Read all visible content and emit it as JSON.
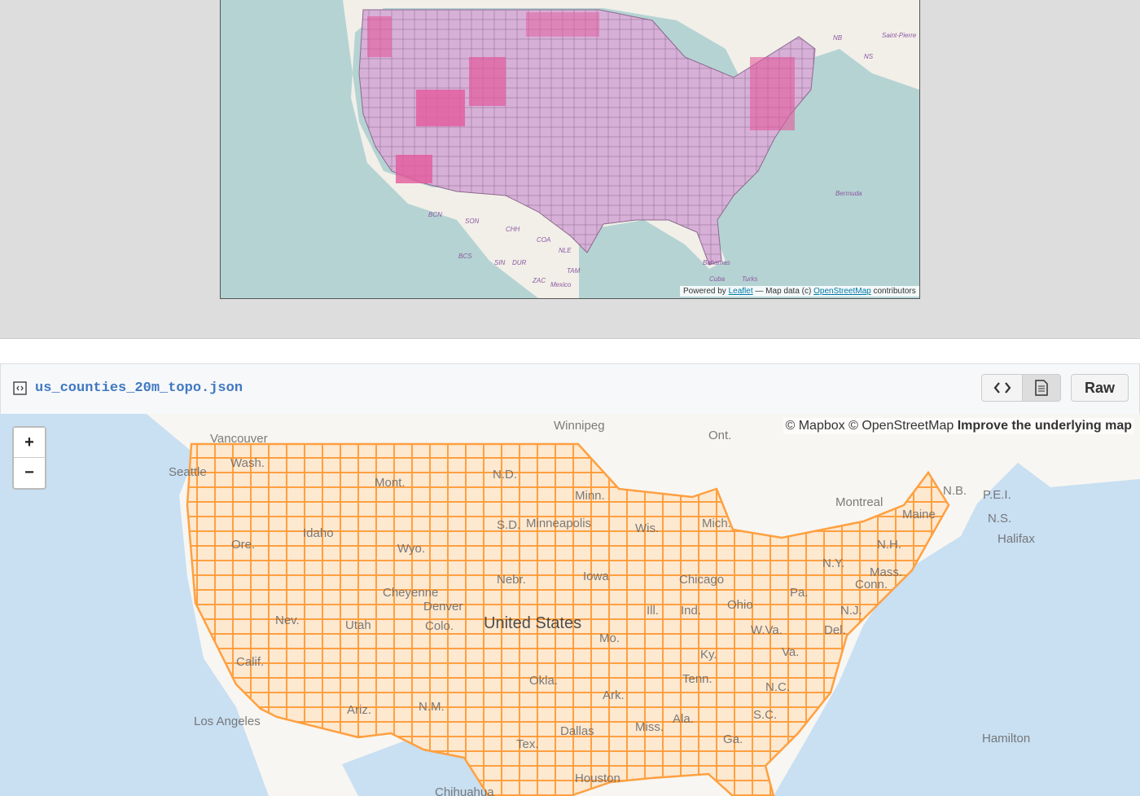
{
  "top_map": {
    "labels": [
      "NB",
      "Saint-Pierre",
      "NS",
      "Bermuda",
      "BCN",
      "SON",
      "CHH",
      "COA",
      "BCS",
      "SIN",
      "DUR",
      "TAM",
      "NLE",
      "ZAC",
      "Mexico",
      "Bahamas",
      "Cuba",
      "Turks"
    ],
    "attribution": {
      "prefix": "Powered by",
      "leaflet": "Leaflet",
      "middle": "— Map data (c)",
      "osm": "OpenStreetMap",
      "suffix": "contributors"
    }
  },
  "file_header": {
    "filename": "us_counties_20m_topo.json",
    "raw_button": "Raw"
  },
  "bottom_map": {
    "zoom_in": "+",
    "zoom_out": "−",
    "attribution": "© Mapbox © OpenStreetMap",
    "improve_link": "Improve the underlying map",
    "labels": [
      "Winnipeg",
      "Vancouver",
      "Seattle",
      "Wash.",
      "Mont.",
      "N.D.",
      "Minn.",
      "Idaho",
      "Ore.",
      "Wyo.",
      "S.D.",
      "Minneapolis",
      "Wis.",
      "Mich.",
      "Ont.",
      "Montreal",
      "N.B.",
      "P.E.I.",
      "N.S.",
      "Halifax",
      "Maine",
      "N.H.",
      "Mass.",
      "Conn.",
      "N.Y.",
      "Pa.",
      "Chicago",
      "Iowa",
      "Nebr.",
      "Cheyenne",
      "Denver",
      "Colo.",
      "Utah",
      "Nev.",
      "Calif.",
      "United States",
      "Ill.",
      "Ind.",
      "Ohio",
      "Ky.",
      "W.Va.",
      "Va.",
      "N.J.",
      "Del.",
      "Okla.",
      "Ark.",
      "Tenn.",
      "N.C.",
      "S.C.",
      "Ga.",
      "Ala.",
      "Miss.",
      "Tex.",
      "Dallas",
      "Houston",
      "N.M.",
      "Ariz.",
      "Los Angeles",
      "Hamilton",
      "Chihuahua",
      "Mo."
    ]
  }
}
